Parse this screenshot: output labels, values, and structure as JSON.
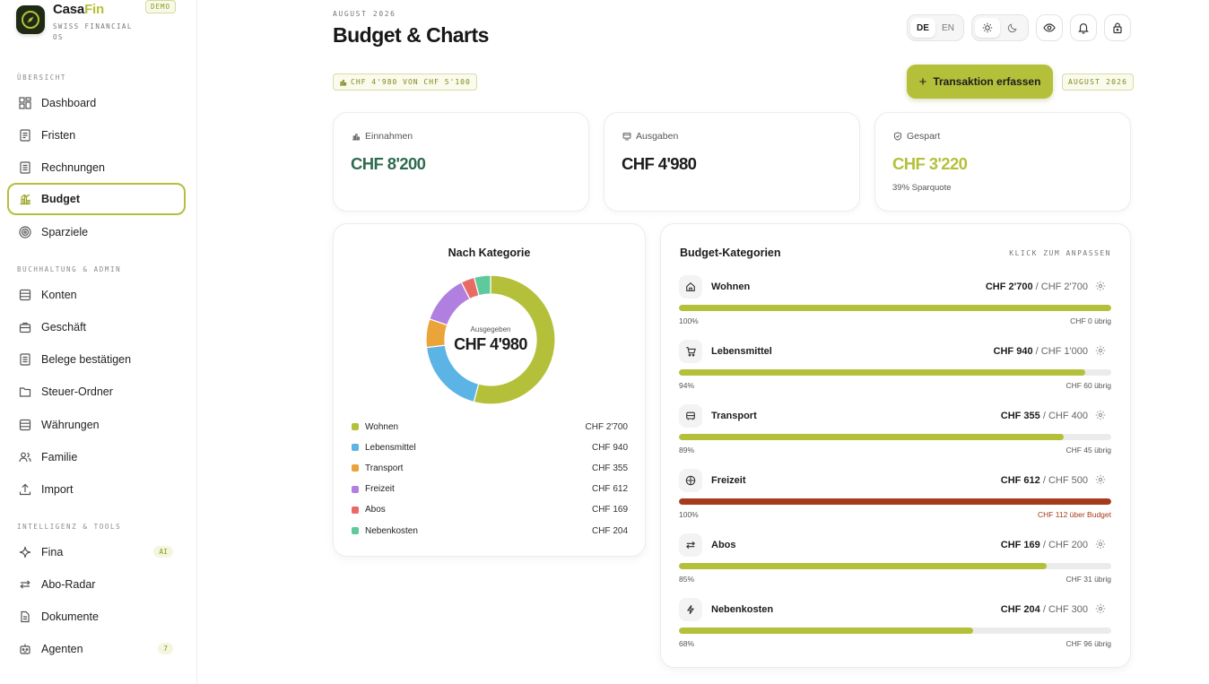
{
  "brand": {
    "name_a": "Casa",
    "name_b": "Fin",
    "subtitle": "SWISS FINANCIAL OS",
    "badge": "DEMO"
  },
  "sidebar": {
    "sections": [
      {
        "title": "ÜBERSICHT"
      },
      {
        "title": "BUCHHALTUNG & ADMIN"
      },
      {
        "title": "INTELLIGENZ & TOOLS"
      }
    ],
    "items": [
      {
        "label": "Dashboard",
        "icon": "grid-icon"
      },
      {
        "label": "Fristen",
        "icon": "calendar-list-icon"
      },
      {
        "label": "Rechnungen",
        "icon": "invoice-icon"
      },
      {
        "label": "Budget",
        "icon": "budget-icon",
        "active": true
      },
      {
        "label": "Sparziele",
        "icon": "target-icon"
      },
      {
        "label": "Konten",
        "icon": "database-icon"
      },
      {
        "label": "Geschäft",
        "icon": "briefcase-icon"
      },
      {
        "label": "Belege bestätigen",
        "icon": "receipt-icon"
      },
      {
        "label": "Steuer-Ordner",
        "icon": "folder-icon"
      },
      {
        "label": "Währungen",
        "icon": "currency-icon"
      },
      {
        "label": "Familie",
        "icon": "users-icon"
      },
      {
        "label": "Import",
        "icon": "upload-icon"
      },
      {
        "label": "Fina",
        "icon": "sparkle-icon",
        "badge": "AI"
      },
      {
        "label": "Abo-Radar",
        "icon": "repeat-icon"
      },
      {
        "label": "Dokumente",
        "icon": "document-icon"
      },
      {
        "label": "Agenten",
        "icon": "robot-icon",
        "badge": "7"
      }
    ]
  },
  "header": {
    "overline": "AUGUST 2026",
    "title": "Budget & Charts",
    "lang_de": "DE",
    "lang_en": "EN",
    "budget_chip": "CHF 4'980 VON CHF 5'100",
    "primary_button": "Transaktion erfassen",
    "month_chip": "AUGUST 2026"
  },
  "stats": [
    {
      "label": "Einnahmen",
      "value": "CHF 8'200",
      "color": "#2f6b4f"
    },
    {
      "label": "Ausgaben",
      "value": "CHF 4'980",
      "color": "#1c1c1c"
    },
    {
      "label": "Gespart",
      "value": "CHF 3'220",
      "sub": "39% Sparquote",
      "color": "#b5c03a"
    }
  ],
  "donut_panel": {
    "title": "Nach Kategorie",
    "center_label": "Ausgegeben",
    "center_value": "CHF 4'980"
  },
  "chart_data": {
    "type": "pie",
    "title": "Nach Kategorie",
    "categories": [
      "Wohnen",
      "Lebensmittel",
      "Transport",
      "Freizeit",
      "Abos",
      "Nebenkosten"
    ],
    "values": [
      2700,
      940,
      355,
      612,
      169,
      204
    ],
    "value_labels": [
      "CHF 2'700",
      "CHF 940",
      "CHF 355",
      "CHF 612",
      "CHF 169",
      "CHF 204"
    ],
    "colors": [
      "#b5c03a",
      "#5bb4e5",
      "#eba43a",
      "#b07fe0",
      "#e86a64",
      "#5ec99a"
    ]
  },
  "budget_panel": {
    "title": "Budget-Kategorien",
    "hint": "KLICK ZUM ANPASSEN",
    "categories": [
      {
        "name": "Wohnen",
        "icon": "home-icon",
        "spent": "CHF 2'700",
        "budget": "/ CHF 2'700",
        "pct_label": "100%",
        "fill": 1.0,
        "rest": "CHF 0 übrig",
        "over": false
      },
      {
        "name": "Lebensmittel",
        "icon": "cart-icon",
        "spent": "CHF 940",
        "budget": "/ CHF 1'000",
        "pct_label": "94%",
        "fill": 0.94,
        "rest": "CHF 60 übrig",
        "over": false
      },
      {
        "name": "Transport",
        "icon": "bus-icon",
        "spent": "CHF 355",
        "budget": "/ CHF 400",
        "pct_label": "89%",
        "fill": 0.89,
        "rest": "CHF 45 übrig",
        "over": false
      },
      {
        "name": "Freizeit",
        "icon": "ball-icon",
        "spent": "CHF 612",
        "budget": "/ CHF 500",
        "pct_label": "100%",
        "fill": 1.0,
        "rest": "CHF 112 über Budget",
        "over": true
      },
      {
        "name": "Abos",
        "icon": "repeat-icon",
        "spent": "CHF 169",
        "budget": "/ CHF 200",
        "pct_label": "85%",
        "fill": 0.85,
        "rest": "CHF 31 übrig",
        "over": false
      },
      {
        "name": "Nebenkosten",
        "icon": "bolt-icon",
        "spent": "CHF 204",
        "budget": "/ CHF 300",
        "pct_label": "68%",
        "fill": 0.68,
        "rest": "CHF 96 übrig",
        "over": false
      }
    ]
  }
}
